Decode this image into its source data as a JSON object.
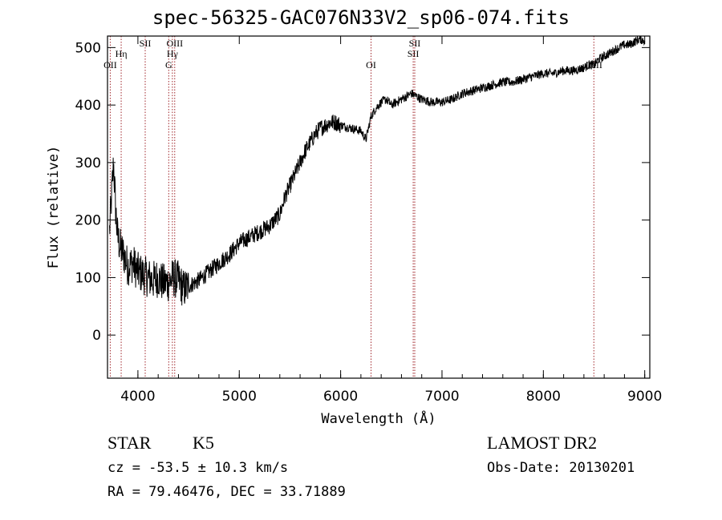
{
  "header": {
    "title": "spec-56325-GAC076N33V2_sp06-074.fits"
  },
  "info": {
    "class_label": "STAR",
    "subclass": "K5",
    "survey": "LAMOST DR2",
    "redshift": "cz = -53.5 ± 10.3 km/s",
    "obs_date": "Obs-Date: 20130201",
    "coords": "RA =  79.46476, DEC =  33.71889"
  },
  "colors": {
    "spectrum": "#000000",
    "lines": "#a0262b",
    "axes": "#000000"
  },
  "chart_data": {
    "type": "line",
    "xlabel": "Wavelength (Å)",
    "ylabel": "Flux (relative)",
    "xlim": [
      3700,
      9050
    ],
    "ylim": [
      -75,
      520
    ],
    "xticks": [
      4000,
      5000,
      6000,
      7000,
      8000,
      9000
    ],
    "yticks": [
      0,
      100,
      200,
      300,
      400,
      500
    ],
    "series": [
      {
        "x": [
          3720,
          3740,
          3760,
          3780,
          3800,
          3830,
          3860,
          3900,
          3950,
          4000,
          4050,
          4100,
          4150,
          4200,
          4250,
          4300,
          4350,
          4400,
          4450,
          4500,
          4600,
          4700,
          4800,
          4900,
          5000,
          5100,
          5200,
          5300,
          5400,
          5450,
          5500,
          5550,
          5600,
          5650,
          5700,
          5750,
          5800,
          5850,
          5900,
          5950,
          6000,
          6100,
          6200,
          6250,
          6300,
          6350,
          6400,
          6450,
          6500,
          6550,
          6600,
          6650,
          6700,
          6750,
          6800,
          6900,
          7000,
          7100,
          7200,
          7300,
          7400,
          7500,
          7600,
          7700,
          7800,
          7900,
          8000,
          8100,
          8200,
          8300,
          8400,
          8450,
          8500,
          8550,
          8600,
          8650,
          8700,
          8750,
          8800,
          8850,
          8900,
          8950,
          9000
        ],
        "y": [
          180,
          240,
          300,
          220,
          170,
          150,
          140,
          120,
          125,
          110,
          105,
          100,
          95,
          100,
          90,
          92,
          100,
          95,
          80,
          85,
          95,
          110,
          125,
          140,
          160,
          170,
          180,
          190,
          210,
          240,
          260,
          280,
          300,
          320,
          335,
          350,
          360,
          365,
          370,
          370,
          365,
          360,
          355,
          340,
          380,
          395,
          405,
          410,
          400,
          405,
          410,
          415,
          420,
          415,
          410,
          405,
          405,
          410,
          420,
          425,
          430,
          435,
          440,
          440,
          445,
          450,
          455,
          455,
          460,
          460,
          465,
          470,
          470,
          480,
          485,
          490,
          495,
          500,
          505,
          505,
          510,
          515,
          512
        ]
      }
    ],
    "annotations": [
      {
        "label": "OII",
        "wavelength": 3727
      },
      {
        "label": "Hη",
        "wavelength": 3835
      },
      {
        "label": "SII",
        "wavelength": 4072
      },
      {
        "label": "G",
        "wavelength": 4304
      },
      {
        "label": "Hγ",
        "wavelength": 4340
      },
      {
        "label": "OIII",
        "wavelength": 4363
      },
      {
        "label": "OI",
        "wavelength": 6300
      },
      {
        "label": "SII",
        "wavelength": 6716
      },
      {
        "label": "SII",
        "wavelength": 6731
      },
      {
        "label": "CaII",
        "wavelength": 8498
      }
    ]
  }
}
